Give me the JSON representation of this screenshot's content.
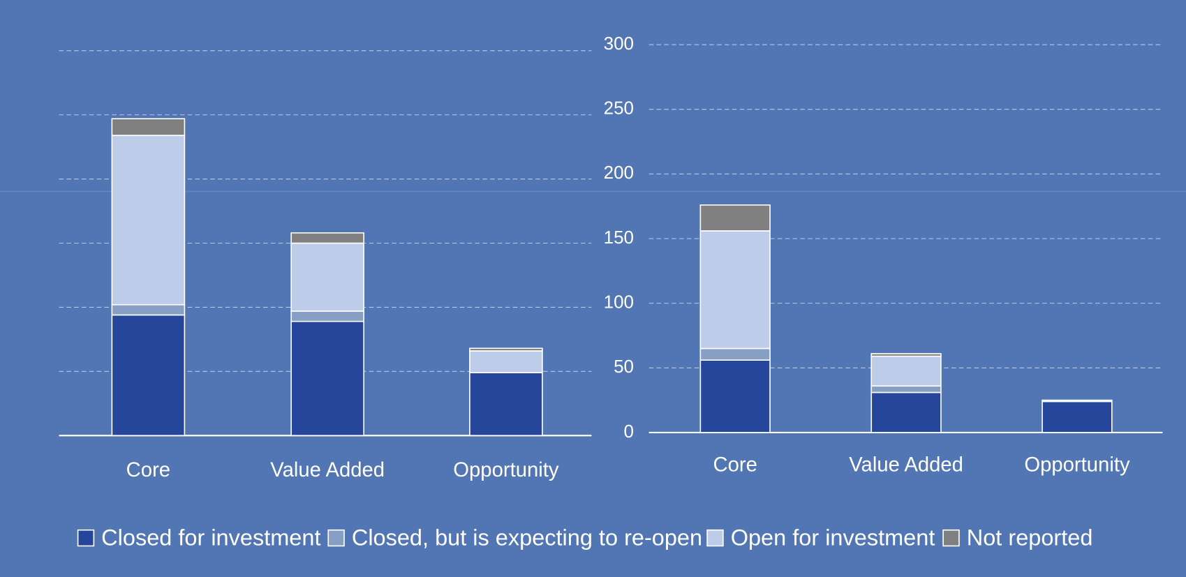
{
  "chart_data": [
    {
      "type": "bar",
      "stacked": true,
      "categories": [
        "Core",
        "Value Added",
        "Opportunity"
      ],
      "series": [
        {
          "name": "Closed for investment",
          "color": "#25469a",
          "values": [
            94,
            89,
            49
          ]
        },
        {
          "name": "Closed, but is expecting to re-open",
          "color": "#879fc4",
          "values": [
            8,
            8,
            0
          ]
        },
        {
          "name": "Open for investment",
          "color": "#bdcce8",
          "values": [
            132,
            53,
            17
          ]
        },
        {
          "name": "Not reported",
          "color": "#808080",
          "values": [
            13,
            8,
            2
          ]
        }
      ],
      "ylim": [
        0,
        300
      ],
      "yticks": [
        0,
        50,
        100,
        150,
        200,
        250,
        300
      ],
      "grid": true
    },
    {
      "type": "bar",
      "stacked": true,
      "categories": [
        "Core",
        "Value Added",
        "Opportunity"
      ],
      "series": [
        {
          "name": "Closed for investment",
          "color": "#25469a",
          "values": [
            56,
            31,
            24
          ]
        },
        {
          "name": "Closed, but is expecting to re-open",
          "color": "#879fc4",
          "values": [
            9,
            5,
            0
          ]
        },
        {
          "name": "Open for investment",
          "color": "#bdcce8",
          "values": [
            91,
            23,
            1
          ]
        },
        {
          "name": "Not reported",
          "color": "#808080",
          "values": [
            20,
            2,
            0
          ]
        }
      ],
      "ylim": [
        0,
        300
      ],
      "yticks": [
        0,
        50,
        100,
        150,
        200,
        250,
        300
      ],
      "grid": true
    }
  ]
}
